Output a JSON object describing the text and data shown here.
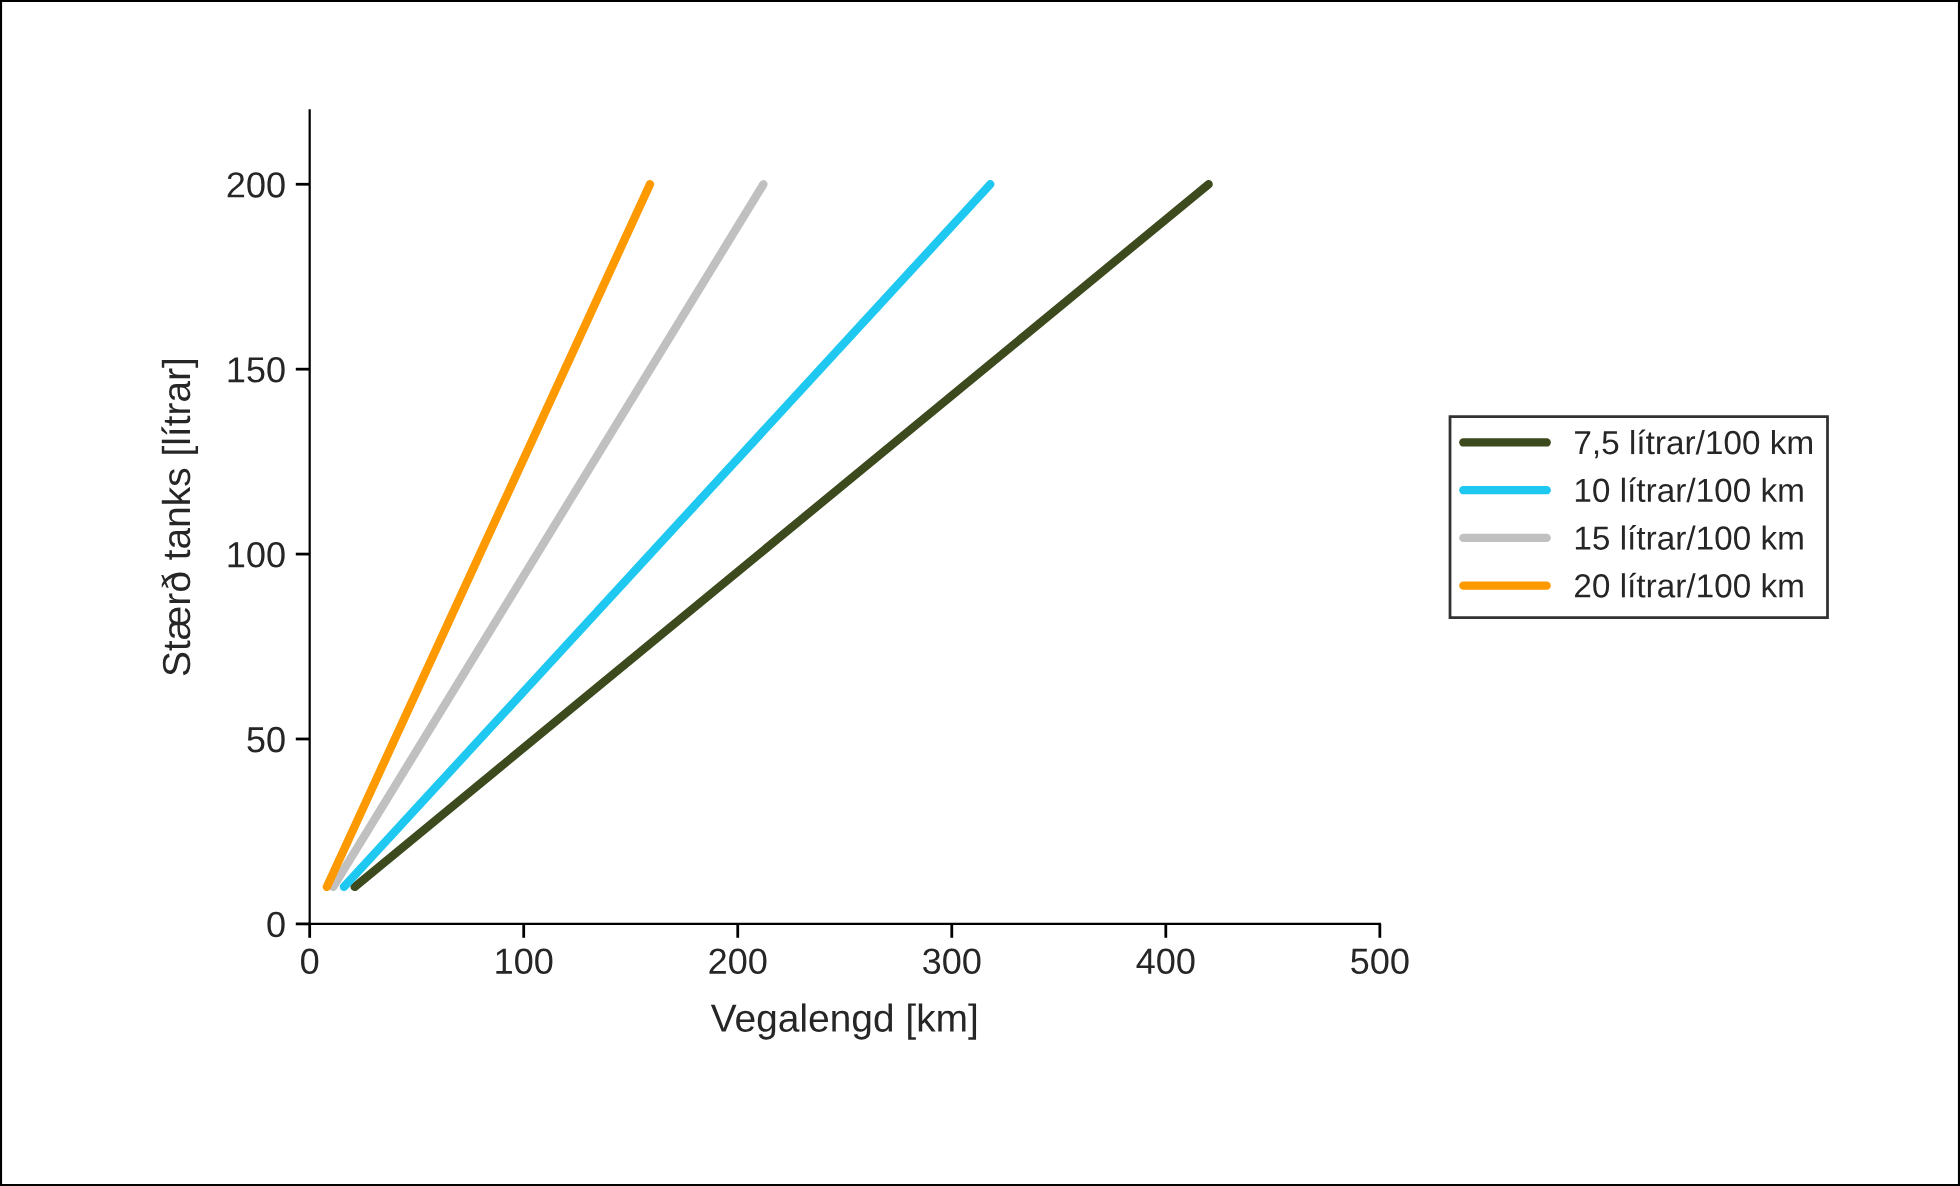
{
  "chart_data": {
    "type": "line",
    "xlabel": "Vegalengd [km]",
    "ylabel": "Stærð tanks [lítrar]",
    "xlim": [
      0,
      500
    ],
    "xticks": [
      0,
      100,
      200,
      300,
      400,
      500
    ],
    "ylim": [
      0,
      220
    ],
    "yticks": [
      0,
      50,
      100,
      150,
      200
    ],
    "grid": false,
    "legend": "right",
    "marker": "none",
    "line_style": "solid",
    "series": [
      {
        "name": "7,5 lítrar/100 km",
        "color": "#3d4a1e",
        "x": [
          21,
          420
        ],
        "values": [
          10,
          200
        ]
      },
      {
        "name": "10 lítrar/100 km",
        "color": "#1ec8f0",
        "x": [
          16,
          318
        ],
        "values": [
          10,
          200
        ]
      },
      {
        "name": "15 lítrar/100 km",
        "color": "#c0c0c0",
        "x": [
          11,
          212
        ],
        "values": [
          10,
          200
        ]
      },
      {
        "name": "20 lítrar/100 km",
        "color": "#ff9900",
        "x": [
          8,
          159
        ],
        "values": [
          10,
          200
        ]
      }
    ]
  }
}
